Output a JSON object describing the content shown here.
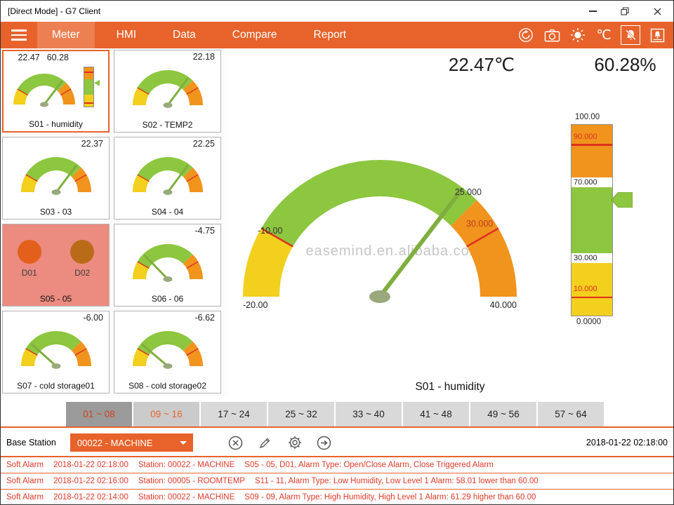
{
  "window": {
    "title": "[Direct Mode] - G7 Client"
  },
  "nav": {
    "tabs": [
      {
        "label": "Meter",
        "active": true
      },
      {
        "label": "HMI",
        "active": false
      },
      {
        "label": "Data",
        "active": false
      },
      {
        "label": "Compare",
        "active": false
      },
      {
        "label": "Report",
        "active": false
      }
    ],
    "icons": [
      {
        "name": "sync-icon"
      },
      {
        "name": "camera-icon"
      },
      {
        "name": "brightness-icon"
      },
      {
        "name": "celsius-icon",
        "glyph": "℃"
      },
      {
        "name": "alarm-mute-icon",
        "boxed": true
      },
      {
        "name": "alarm-panel-icon"
      }
    ]
  },
  "sidebar": {
    "tiles": [
      {
        "label": "S01 - humidity",
        "type": "gauge-bar",
        "value": "22.47",
        "value2": "60.28",
        "selected": true
      },
      {
        "label": "S02 - TEMP2",
        "type": "gauge",
        "value": "22.18"
      },
      {
        "label": "S03 - 03",
        "type": "gauge",
        "value": "22.37"
      },
      {
        "label": "S04 - 04",
        "type": "gauge",
        "value": "22.25"
      },
      {
        "label": "S05 - 05",
        "type": "digital",
        "alarm": true,
        "points": [
          {
            "label": "D01",
            "color": "#e2601c"
          },
          {
            "label": "D02",
            "color": "#b96b17"
          }
        ]
      },
      {
        "label": "S06 - 06",
        "type": "gauge",
        "value": "-4.75"
      },
      {
        "label": "S07 - cold storage01",
        "type": "gauge",
        "value": "-6.00"
      },
      {
        "label": "S08 - cold storage02",
        "type": "gauge",
        "value": "-6.62"
      }
    ]
  },
  "main": {
    "temp_reading": "22.47℃",
    "humidity_reading": "60.28%",
    "watermark": "easemind.en.alibaba.com",
    "gauge": {
      "value": 22.47,
      "min": -20,
      "max": 40,
      "min_label": "-20.00",
      "low_label": "-10.00",
      "mid_label": "25.000",
      "alarm_label": "30.000",
      "max_label": "40.000",
      "caption": "S01 - humidity"
    },
    "bar": {
      "value": 60.28,
      "min": 0,
      "max": 100,
      "max_label": "100.00",
      "l90": "90.000",
      "l70": "70.000",
      "l30": "30.000",
      "l10": "10.000",
      "min_label": "0.0000"
    }
  },
  "range_tabs": [
    {
      "label": "01 ~ 08",
      "state": "active"
    },
    {
      "label": "09 ~ 16",
      "state": "alert"
    },
    {
      "label": "17 ~ 24",
      "state": "normal"
    },
    {
      "label": "25 ~ 32",
      "state": "normal"
    },
    {
      "label": "33 ~ 40",
      "state": "normal"
    },
    {
      "label": "41 ~ 48",
      "state": "normal"
    },
    {
      "label": "49 ~ 56",
      "state": "normal"
    },
    {
      "label": "57 ~ 64",
      "state": "normal"
    }
  ],
  "station_bar": {
    "label": "Base Station",
    "dropdown_value": "00022 - MACHINE",
    "timestamp": "2018-01-22 02:18:00",
    "icons": [
      {
        "name": "cancel-icon"
      },
      {
        "name": "edit-icon"
      },
      {
        "name": "settings-icon"
      },
      {
        "name": "go-icon"
      }
    ]
  },
  "alarms": [
    {
      "type": "Soft Alarm",
      "time": "2018-01-22 02:18:00",
      "station": "Station: 00022 - MACHINE",
      "detail": "S05 - 05, D01, Alarm Type: Open/Close Alarm, Close Triggered Alarm"
    },
    {
      "type": "Soft Alarm",
      "time": "2018-01-22 02:16:00",
      "station": "Station: 00005 - ROOMTEMP",
      "detail": "S11 - 11, Alarm Type: Low Humidity, Low Level 1 Alarm: 58.01 lower than 60.00"
    },
    {
      "type": "Soft Alarm",
      "time": "2018-01-22 02:14:00",
      "station": "Station: 00022 - MACHINE",
      "detail": "S09 - 09, Alarm Type: High Humidity, High Level 1 Alarm: 61.29 higher than 60.00"
    }
  ],
  "colors": {
    "accent": "#e7632b",
    "gauge_green": "#8dc63f",
    "gauge_yellow": "#f3cf1e",
    "gauge_orange": "#f0941e",
    "alarm_red": "#e0301e"
  }
}
